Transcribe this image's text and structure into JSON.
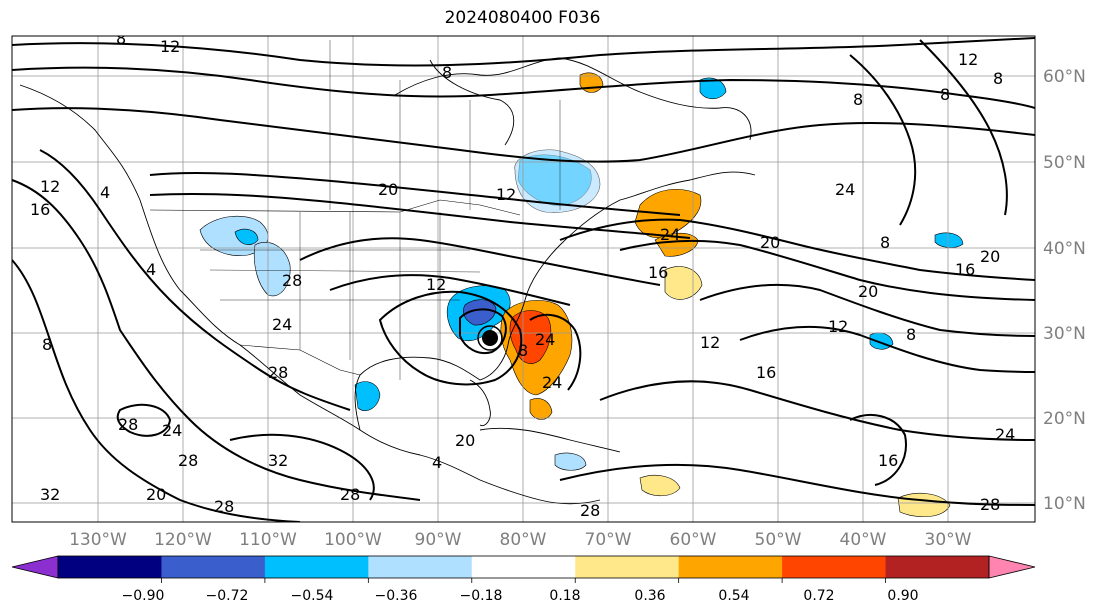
{
  "title": "2024080400 F036",
  "latitude_labels": [
    "60°N",
    "50°N",
    "40°N",
    "30°N",
    "20°N",
    "10°N"
  ],
  "longitude_labels": [
    "130°W",
    "120°W",
    "110°W",
    "100°W",
    "90°W",
    "80°W",
    "70°W",
    "60°W",
    "50°W",
    "40°W",
    "30°W"
  ],
  "colorbar": {
    "colors": [
      "#8c2fd0",
      "#000080",
      "#3a5fcd",
      "#00bfff",
      "#b0e0ff",
      "#ffffff",
      "#ffe88a",
      "#ffa500",
      "#ff4500",
      "#b22222",
      "#ff85b0"
    ],
    "tick_labels": [
      "−0.90",
      "−0.72",
      "−0.54",
      "−0.36",
      "−0.18",
      "0.18",
      "0.36",
      "0.54",
      "0.72",
      "0.90"
    ]
  },
  "contour_labels": [
    "12",
    "8",
    "8",
    "12",
    "8",
    "12",
    "8",
    "4",
    "16",
    "12",
    "4",
    "20",
    "12",
    "8",
    "20",
    "24",
    "24",
    "16",
    "20",
    "16",
    "20",
    "8",
    "8",
    "12",
    "24",
    "28",
    "24",
    "24",
    "12",
    "8",
    "16",
    "28",
    "24",
    "28",
    "32",
    "28",
    "20",
    "28",
    "24",
    "16",
    "28",
    "28",
    "32",
    "4",
    "28",
    "8",
    "20"
  ],
  "hurricane_marker": "tropical-cyclone-center"
}
